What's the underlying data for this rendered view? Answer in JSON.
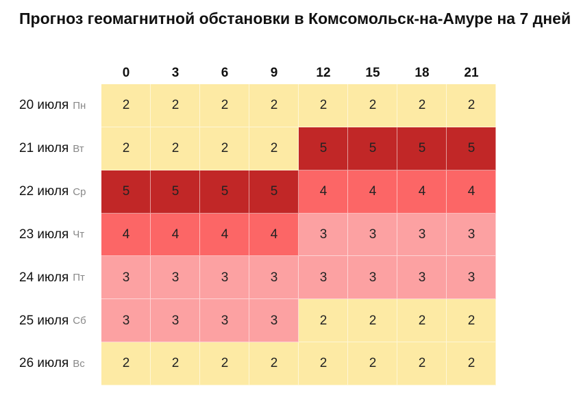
{
  "title": "Прогноз геомагнитной обстановки в Комсомольск-на-Амуре на 7 дней",
  "hours": [
    "0",
    "3",
    "6",
    "9",
    "12",
    "15",
    "18",
    "21"
  ],
  "level_colors": {
    "2": "#fdeaa4",
    "3": "#fca1a2",
    "4": "#fc6666",
    "5": "#c12727"
  },
  "days": [
    {
      "date": "20 июля",
      "weekday": "Пн",
      "values": [
        2,
        2,
        2,
        2,
        2,
        2,
        2,
        2
      ]
    },
    {
      "date": "21 июля",
      "weekday": "Вт",
      "values": [
        2,
        2,
        2,
        2,
        5,
        5,
        5,
        5
      ]
    },
    {
      "date": "22 июля",
      "weekday": "Ср",
      "values": [
        5,
        5,
        5,
        5,
        4,
        4,
        4,
        4
      ]
    },
    {
      "date": "23 июля",
      "weekday": "Чт",
      "values": [
        4,
        4,
        4,
        4,
        3,
        3,
        3,
        3
      ]
    },
    {
      "date": "24 июля",
      "weekday": "Пт",
      "values": [
        3,
        3,
        3,
        3,
        3,
        3,
        3,
        3
      ]
    },
    {
      "date": "25 июля",
      "weekday": "Сб",
      "values": [
        3,
        3,
        3,
        3,
        2,
        2,
        2,
        2
      ]
    },
    {
      "date": "26 июля",
      "weekday": "Вс",
      "values": [
        2,
        2,
        2,
        2,
        2,
        2,
        2,
        2
      ]
    }
  ]
}
